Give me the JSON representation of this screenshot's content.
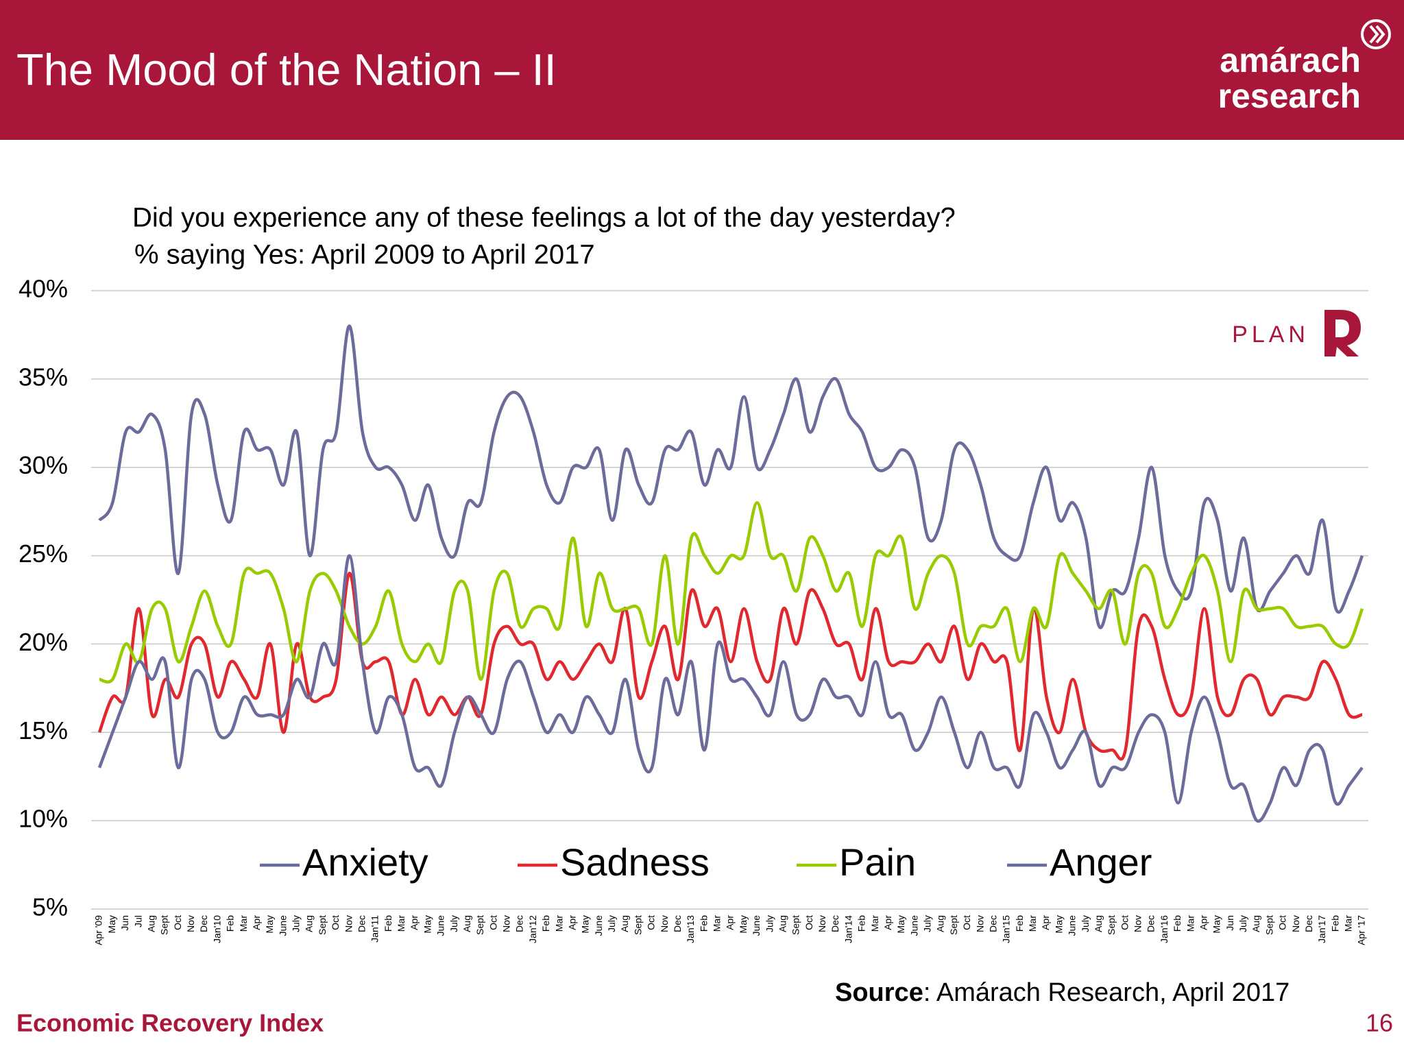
{
  "header": {
    "title": "The Mood of the Nation – II",
    "logo": [
      "amárach",
      "research"
    ],
    "plan_logo": "PLAN"
  },
  "chart_data": {
    "type": "line",
    "title": "Did you experience any of these feelings a lot of the day yesterday?",
    "subtitle": "% saying Yes: April 2009 to April 2017",
    "categories": [
      "Apr '09",
      "May",
      "Jun",
      "Jul",
      "Aug",
      "Sept",
      "Oct",
      "Nov",
      "Dec",
      "Jan'10",
      "Feb",
      "Mar",
      "Apr",
      "May",
      "June",
      "July",
      "Aug",
      "Sept",
      "Oct",
      "Nov",
      "Dec",
      "Jan'11",
      "Feb",
      "Mar",
      "Apr",
      "May",
      "June",
      "July",
      "Aug",
      "Sept",
      "Oct",
      "Nov",
      "Dec",
      "Jan'12",
      "Feb",
      "Mar",
      "Apr",
      "May",
      "June",
      "July",
      "Aug",
      "Sept",
      "Oct",
      "Nov",
      "Dec",
      "Jan'13",
      "Feb",
      "Mar",
      "Apr",
      "May",
      "June",
      "July",
      "Aug",
      "Sept",
      "Oct",
      "Nov",
      "Dec",
      "Jan'14",
      "Feb",
      "Mar",
      "Apr",
      "May",
      "June",
      "July",
      "Aug",
      "Sept",
      "Oct",
      "Nov",
      "Dec",
      "Jan'15",
      "Feb",
      "Mar",
      "Apr",
      "May",
      "June",
      "July",
      "Aug",
      "Sept",
      "Oct",
      "Nov",
      "Dec",
      "Jan'16",
      "Feb",
      "Mar",
      "Apr",
      "May",
      "Jun",
      "July",
      "Aug",
      "Sept",
      "Oct",
      "Nov",
      "Dec",
      "Jan'17",
      "Feb",
      "Mar",
      "Apr '17"
    ],
    "series": [
      {
        "name": "Anxiety",
        "color": "#6c6c9c",
        "values": [
          27,
          28,
          32,
          32,
          33,
          31,
          24,
          33,
          33,
          29,
          27,
          32,
          31,
          31,
          29,
          32,
          25,
          31,
          32,
          38,
          32,
          30,
          30,
          29,
          27,
          29,
          26,
          25,
          28,
          28,
          32,
          34,
          34,
          32,
          29,
          28,
          30,
          30,
          31,
          27,
          31,
          29,
          28,
          31,
          31,
          32,
          29,
          31,
          30,
          34,
          30,
          31,
          33,
          35,
          32,
          34,
          35,
          33,
          32,
          30,
          30,
          31,
          30,
          26,
          27,
          31,
          31,
          29,
          26,
          25,
          25,
          28,
          30,
          27,
          28,
          26,
          21,
          23,
          23,
          26,
          30,
          25,
          23,
          23,
          28,
          27,
          23,
          26,
          22,
          23,
          24,
          25,
          24,
          27,
          22,
          23,
          25
        ]
      },
      {
        "name": "Sadness",
        "color": "#e0282e",
        "values": [
          15,
          17,
          17,
          22,
          16,
          18,
          17,
          20,
          20,
          17,
          19,
          18,
          17,
          20,
          15,
          20,
          17,
          17,
          18,
          24,
          19,
          19,
          19,
          16,
          18,
          16,
          17,
          16,
          17,
          16,
          20,
          21,
          20,
          20,
          18,
          19,
          18,
          19,
          20,
          19,
          22,
          17,
          19,
          21,
          18,
          23,
          21,
          22,
          19,
          22,
          19,
          18,
          22,
          20,
          23,
          22,
          20,
          20,
          18,
          22,
          19,
          19,
          19,
          20,
          19,
          21,
          18,
          20,
          19,
          19,
          14,
          22,
          17,
          15,
          18,
          15,
          14,
          14,
          14,
          21,
          21,
          18,
          16,
          17,
          22,
          17,
          16,
          18,
          18,
          16,
          17,
          17,
          17,
          19,
          18,
          16,
          16
        ]
      },
      {
        "name": "Pain",
        "color": "#99cc00",
        "values": [
          18,
          18,
          20,
          19,
          22,
          22,
          19,
          21,
          23,
          21,
          20,
          24,
          24,
          24,
          22,
          19,
          23,
          24,
          23,
          21,
          20,
          21,
          23,
          20,
          19,
          20,
          19,
          23,
          23,
          18,
          23,
          24,
          21,
          22,
          22,
          21,
          26,
          21,
          24,
          22,
          22,
          22,
          20,
          25,
          20,
          26,
          25,
          24,
          25,
          25,
          28,
          25,
          25,
          23,
          26,
          25,
          23,
          24,
          21,
          25,
          25,
          26,
          22,
          24,
          25,
          24,
          20,
          21,
          21,
          22,
          19,
          22,
          21,
          25,
          24,
          23,
          22,
          23,
          20,
          24,
          24,
          21,
          22,
          24,
          25,
          23,
          19,
          23,
          22,
          22,
          22,
          21,
          21,
          21,
          20,
          20,
          22
        ]
      },
      {
        "name": "Anger",
        "color": "#6c6c9c",
        "values": [
          13,
          15,
          17,
          19,
          18,
          19,
          13,
          18,
          18,
          15,
          15,
          17,
          16,
          16,
          16,
          18,
          17,
          20,
          19,
          25,
          19,
          15,
          17,
          16,
          13,
          13,
          12,
          15,
          17,
          16,
          15,
          18,
          19,
          17,
          15,
          16,
          15,
          17,
          16,
          15,
          18,
          14,
          13,
          18,
          16,
          19,
          14,
          20,
          18,
          18,
          17,
          16,
          19,
          16,
          16,
          18,
          17,
          17,
          16,
          19,
          16,
          16,
          14,
          15,
          17,
          15,
          13,
          15,
          13,
          13,
          12,
          16,
          15,
          13,
          14,
          15,
          12,
          13,
          13,
          15,
          16,
          15,
          11,
          15,
          17,
          15,
          12,
          12,
          10,
          11,
          13,
          12,
          14,
          14,
          11,
          12,
          13
        ]
      }
    ],
    "ylim": [
      5,
      40
    ],
    "yticks": [
      {
        "value": 5,
        "label": "5%"
      },
      {
        "value": 10,
        "label": "10%"
      },
      {
        "value": 15,
        "label": "15%"
      },
      {
        "value": 20,
        "label": "20%"
      },
      {
        "value": 25,
        "label": "25%"
      },
      {
        "value": 30,
        "label": "30%"
      },
      {
        "value": 35,
        "label": "35%"
      },
      {
        "value": 40,
        "label": "40%"
      }
    ],
    "grid": true,
    "legend": "bottom"
  },
  "source": {
    "label": "Source",
    "text": ": Amárach Research, April 2017"
  },
  "footer": {
    "left": "Economic Recovery Index",
    "page": 16
  }
}
